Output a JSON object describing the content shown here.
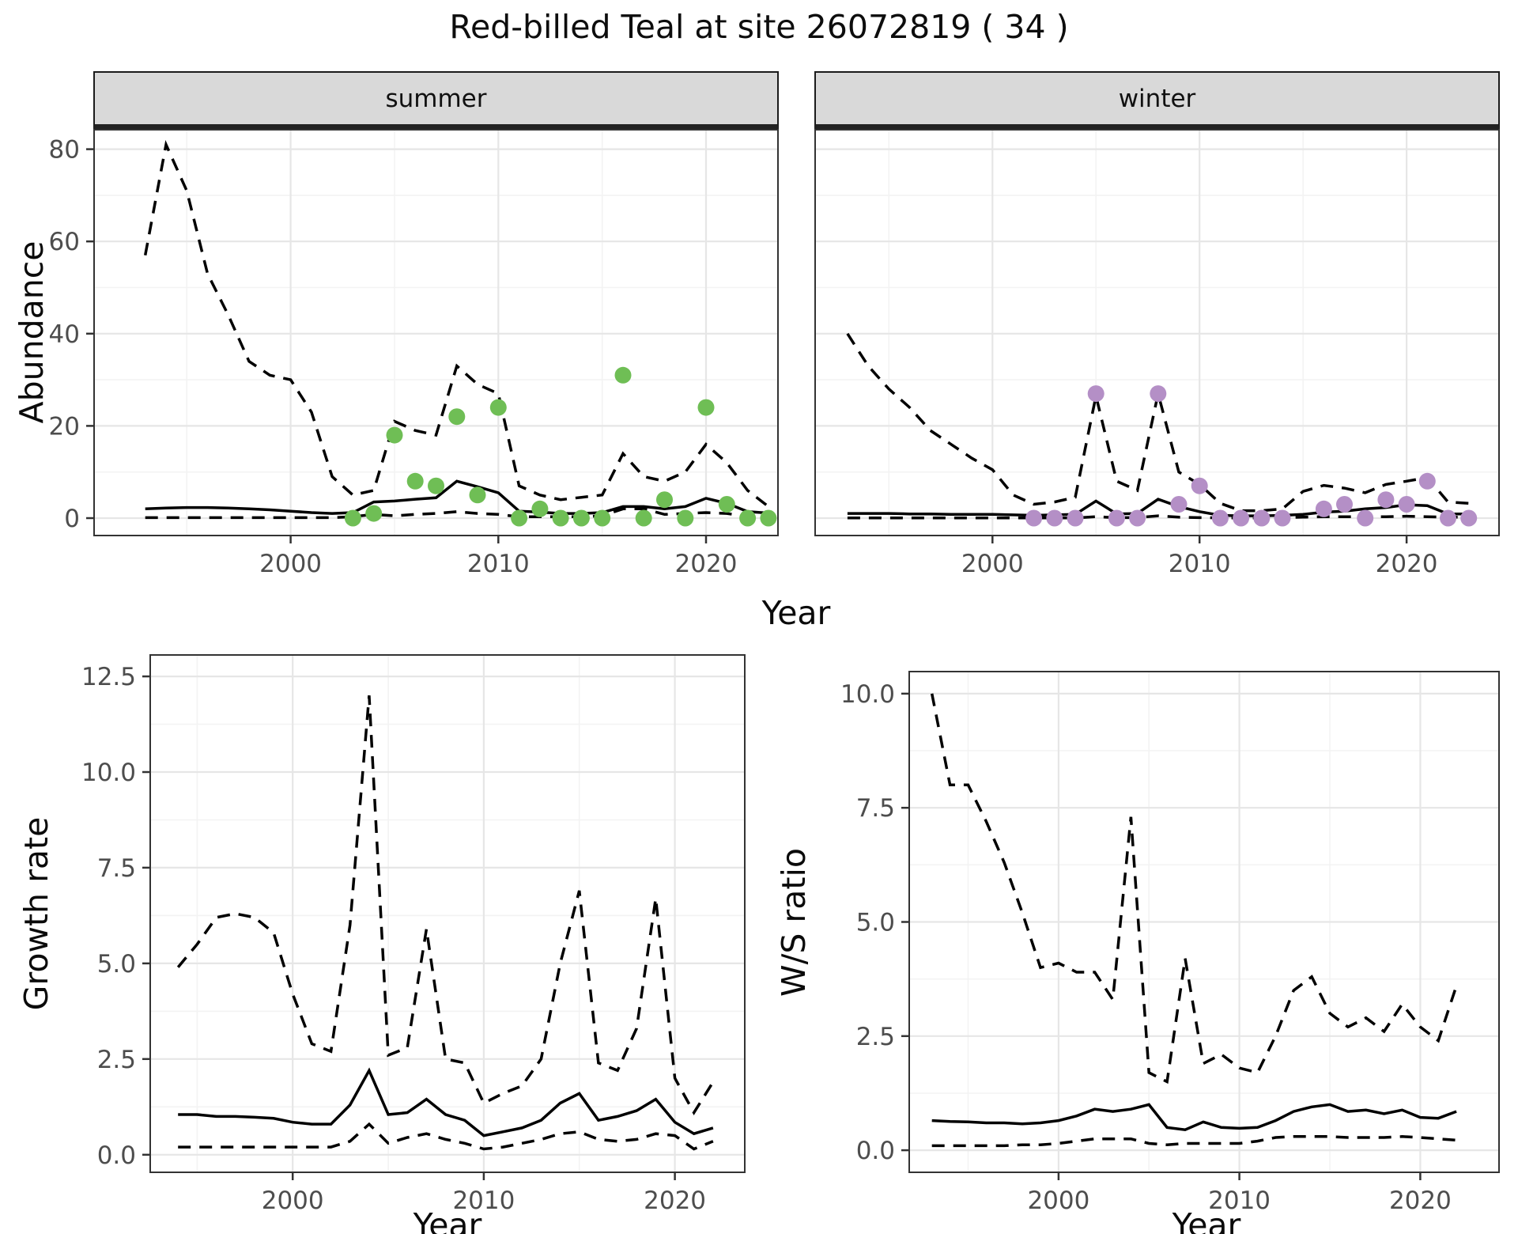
{
  "title": "Red-billed Teal at site 26072819 ( 34 )",
  "labels": {
    "abundance": "Abundance",
    "year": "Year",
    "growth_rate": "Growth rate",
    "ws_ratio": "W/S ratio"
  },
  "colors": {
    "summer_point": "#6fbe55",
    "winter_point": "#b48fc6",
    "line": "#000000",
    "grid_major": "#e6e6e6",
    "grid_minor": "#f3f3f3",
    "strip_bg": "#d9d9d9",
    "panel_border": "#333333",
    "tick_color": "#333333",
    "tick_text": "#4d4d4d"
  },
  "chart_data": [
    {
      "id": "abundance_summer",
      "type": "line",
      "strip": "summer",
      "xlabel": "Year",
      "ylabel": "Abundance",
      "xlim": [
        1990.5,
        2023.5
      ],
      "ylim": [
        -3.95,
        84.4
      ],
      "grid": true,
      "x_ticks": {
        "values": [
          2000,
          2010,
          2020
        ],
        "labels": [
          "2000",
          "2010",
          "2020"
        ],
        "minor": [
          1995,
          2005,
          2015
        ]
      },
      "y_ticks": {
        "values": [
          0,
          20,
          40,
          60,
          80
        ],
        "labels": [
          "0",
          "20",
          "40",
          "60",
          "80"
        ],
        "minor": [
          10,
          30,
          50,
          70
        ]
      },
      "years": [
        1993,
        1994,
        1995,
        1996,
        1997,
        1998,
        1999,
        2000,
        2001,
        2002,
        2003,
        2004,
        2005,
        2006,
        2007,
        2008,
        2009,
        2010,
        2011,
        2012,
        2013,
        2014,
        2015,
        2016,
        2017,
        2018,
        2019,
        2020,
        2021,
        2022,
        2023
      ],
      "series": [
        {
          "name": "upper_95ci",
          "style": "dashed",
          "values": [
            57,
            81,
            71,
            53,
            44,
            34,
            31,
            30,
            23,
            9,
            5,
            6,
            21,
            19,
            18,
            33,
            29,
            27,
            7,
            5,
            4,
            4.5,
            5,
            14,
            9,
            8,
            10,
            16,
            12,
            6,
            2.5
          ]
        },
        {
          "name": "median",
          "style": "solid",
          "values": [
            2,
            2.2,
            2.3,
            2.3,
            2.2,
            2,
            1.8,
            1.5,
            1.2,
            1,
            1.2,
            3.5,
            3.7,
            4.1,
            4.4,
            8,
            6.8,
            5.5,
            1.5,
            1.3,
            1,
            1,
            1.2,
            2.5,
            2.5,
            2,
            2.5,
            4.3,
            3.2,
            1.4,
            1.1
          ]
        },
        {
          "name": "lower_95ci",
          "style": "dashed",
          "values": [
            0.1,
            0.1,
            0.1,
            0.1,
            0.1,
            0.1,
            0.1,
            0.1,
            0.1,
            0.1,
            0.3,
            0.8,
            0.5,
            0.8,
            1,
            1.4,
            1,
            0.8,
            0.3,
            0.3,
            0.3,
            0.3,
            0.5,
            2,
            2,
            0.8,
            1,
            1.2,
            1,
            0.3,
            0.2
          ]
        }
      ],
      "points": {
        "name": "observed_counts",
        "color": "summer_point",
        "years": [
          2003,
          2004,
          2005,
          2006,
          2007,
          2008,
          2009,
          2010,
          2011,
          2012,
          2013,
          2014,
          2015,
          2016,
          2017,
          2018,
          2019,
          2020,
          2021,
          2022,
          2023
        ],
        "values": [
          0,
          1,
          18,
          8,
          7,
          22,
          5,
          24,
          0,
          2,
          0,
          0,
          0,
          31,
          0,
          4,
          0,
          24,
          3,
          0,
          0
        ]
      }
    },
    {
      "id": "abundance_winter",
      "type": "line",
      "strip": "winter",
      "xlabel": "Year",
      "ylabel": "Abundance",
      "xlim": [
        1991.4,
        2024.5
      ],
      "ylim": [
        -3.95,
        84.4
      ],
      "grid": true,
      "x_ticks": {
        "values": [
          2000,
          2010,
          2020
        ],
        "labels": [
          "2000",
          "2010",
          "2020"
        ],
        "minor": [
          1995,
          2005,
          2015
        ]
      },
      "y_ticks": {
        "values": [
          0,
          20,
          40,
          60,
          80
        ],
        "labels": [
          "0",
          "20",
          "40",
          "60",
          "80"
        ],
        "minor": [
          10,
          30,
          50,
          70
        ]
      },
      "years": [
        1993,
        1994,
        1995,
        1996,
        1997,
        1998,
        1999,
        2000,
        2001,
        2002,
        2003,
        2004,
        2005,
        2006,
        2007,
        2008,
        2009,
        2010,
        2011,
        2012,
        2013,
        2014,
        2015,
        2016,
        2017,
        2018,
        2019,
        2020,
        2021,
        2022,
        2023
      ],
      "series": [
        {
          "name": "upper_95ci",
          "style": "dashed",
          "values": [
            40,
            33,
            28,
            24,
            19,
            16,
            13,
            10.5,
            5,
            3,
            3.5,
            4.5,
            26.5,
            8,
            6,
            27,
            10,
            7.3,
            3.2,
            1.6,
            1.6,
            2,
            5.8,
            7.1,
            6.5,
            5.5,
            7.3,
            8,
            8.8,
            3.5,
            3.2
          ]
        },
        {
          "name": "median",
          "style": "solid",
          "values": [
            1,
            1,
            1,
            0.9,
            0.9,
            0.8,
            0.8,
            0.8,
            0.7,
            0.6,
            0.7,
            0.8,
            3.7,
            0.9,
            1,
            4.1,
            2.5,
            1.4,
            0.6,
            0.5,
            0.5,
            0.6,
            0.8,
            1.3,
            1.5,
            2,
            2.3,
            2.9,
            2.7,
            0.9,
            0.9
          ]
        },
        {
          "name": "lower_95ci",
          "style": "dashed",
          "values": [
            0.05,
            0.05,
            0.05,
            0.05,
            0.05,
            0.05,
            0.05,
            0.05,
            0.05,
            0.05,
            0.05,
            0.05,
            0.3,
            0.1,
            0.1,
            0.5,
            0.2,
            0.1,
            0.05,
            0.05,
            0.05,
            0.1,
            0.2,
            0.3,
            0.3,
            0.3,
            0.3,
            0.4,
            0.3,
            0.2,
            0.2
          ]
        }
      ],
      "points": {
        "name": "observed_counts",
        "color": "winter_point",
        "years": [
          2002,
          2003,
          2004,
          2005,
          2006,
          2007,
          2008,
          2009,
          2010,
          2011,
          2012,
          2013,
          2014,
          2016,
          2017,
          2018,
          2019,
          2020,
          2021,
          2022,
          2023
        ],
        "values": [
          0,
          0,
          0,
          27,
          0,
          0,
          27,
          3,
          7,
          0,
          0,
          0,
          0,
          2,
          3,
          0,
          4,
          3,
          8,
          0,
          0
        ]
      }
    },
    {
      "id": "growth_rate",
      "type": "line",
      "strip": null,
      "xlabel": "Year",
      "ylabel": "Growth rate",
      "xlim": [
        1992.5,
        2023.7
      ],
      "ylim": [
        -0.48,
        13.08
      ],
      "grid": true,
      "x_ticks": {
        "values": [
          2000,
          2010,
          2020
        ],
        "labels": [
          "2000",
          "2010",
          "2020"
        ],
        "minor": [
          1995,
          2005,
          2015
        ]
      },
      "y_ticks": {
        "values": [
          0,
          2.5,
          5,
          7.5,
          10,
          12.5
        ],
        "labels": [
          "0.0",
          "2.5",
          "5.0",
          "7.5",
          "10.0",
          "12.5"
        ],
        "minor": [
          1.25,
          3.75,
          6.25,
          8.75,
          11.25
        ]
      },
      "years": [
        1994,
        1995,
        1996,
        1997,
        1998,
        1999,
        2000,
        2001,
        2002,
        2003,
        2004,
        2005,
        2006,
        2007,
        2008,
        2009,
        2010,
        2011,
        2012,
        2013,
        2014,
        2015,
        2016,
        2017,
        2018,
        2019,
        2020,
        2021,
        2022
      ],
      "series": [
        {
          "name": "upper_95ci",
          "style": "dashed",
          "values": [
            4.9,
            5.5,
            6.2,
            6.3,
            6.2,
            5.8,
            4.2,
            2.9,
            2.7,
            6,
            12,
            2.6,
            2.8,
            5.9,
            2.5,
            2.4,
            1.35,
            1.6,
            1.8,
            2.5,
            5,
            6.9,
            2.4,
            2.2,
            3.3,
            6.7,
            2,
            1.1,
            1.9
          ]
        },
        {
          "name": "median",
          "style": "solid",
          "values": [
            1.05,
            1.05,
            1,
            1,
            0.98,
            0.95,
            0.85,
            0.8,
            0.8,
            1.3,
            2.2,
            1.05,
            1.1,
            1.45,
            1.05,
            0.9,
            0.5,
            0.6,
            0.7,
            0.9,
            1.35,
            1.6,
            0.9,
            1,
            1.15,
            1.45,
            0.85,
            0.55,
            0.7
          ]
        },
        {
          "name": "lower_95ci",
          "style": "dashed",
          "values": [
            0.2,
            0.2,
            0.2,
            0.2,
            0.2,
            0.2,
            0.2,
            0.2,
            0.2,
            0.35,
            0.8,
            0.3,
            0.45,
            0.55,
            0.4,
            0.3,
            0.15,
            0.2,
            0.3,
            0.4,
            0.55,
            0.6,
            0.4,
            0.35,
            0.4,
            0.55,
            0.5,
            0.15,
            0.35
          ]
        }
      ],
      "points": null
    },
    {
      "id": "ws_ratio",
      "type": "line",
      "strip": null,
      "xlabel": "Year",
      "ylabel": "W/S ratio",
      "xlim": [
        1991.7,
        2024.4
      ],
      "ylim": [
        -0.5,
        10.5
      ],
      "grid": true,
      "x_ticks": {
        "values": [
          2000,
          2010,
          2020
        ],
        "labels": [
          "2000",
          "2010",
          "2020"
        ],
        "minor": [
          1995,
          2005,
          2015
        ]
      },
      "y_ticks": {
        "values": [
          0,
          2.5,
          5,
          7.5,
          10
        ],
        "labels": [
          "0.0",
          "2.5",
          "5.0",
          "7.5",
          "10.0"
        ],
        "minor": [
          1.25,
          3.75,
          6.25,
          8.75
        ]
      },
      "years": [
        1993,
        1994,
        1995,
        1996,
        1997,
        1998,
        1999,
        2000,
        2001,
        2002,
        2003,
        2004,
        2005,
        2006,
        2007,
        2008,
        2009,
        2010,
        2011,
        2012,
        2013,
        2014,
        2015,
        2016,
        2017,
        2018,
        2019,
        2020,
        2021,
        2022
      ],
      "series": [
        {
          "name": "upper_95ci",
          "style": "dashed",
          "values": [
            10,
            8,
            8,
            7.2,
            6.3,
            5.2,
            4,
            4.1,
            3.9,
            3.9,
            3.3,
            7.3,
            1.7,
            1.5,
            4.2,
            1.9,
            2.1,
            1.8,
            1.7,
            2.5,
            3.5,
            3.8,
            3,
            2.7,
            2.9,
            2.6,
            3.2,
            2.7,
            2.4,
            3.6
          ]
        },
        {
          "name": "median",
          "style": "solid",
          "values": [
            0.65,
            0.63,
            0.62,
            0.6,
            0.6,
            0.58,
            0.6,
            0.65,
            0.75,
            0.9,
            0.85,
            0.9,
            1,
            0.5,
            0.45,
            0.62,
            0.5,
            0.48,
            0.5,
            0.65,
            0.85,
            0.95,
            1,
            0.85,
            0.88,
            0.8,
            0.88,
            0.72,
            0.7,
            0.85
          ]
        },
        {
          "name": "lower_95ci",
          "style": "dashed",
          "values": [
            0.1,
            0.1,
            0.1,
            0.1,
            0.1,
            0.12,
            0.12,
            0.15,
            0.2,
            0.25,
            0.25,
            0.25,
            0.15,
            0.12,
            0.15,
            0.15,
            0.15,
            0.15,
            0.2,
            0.28,
            0.3,
            0.3,
            0.3,
            0.28,
            0.28,
            0.28,
            0.3,
            0.28,
            0.25,
            0.22
          ]
        }
      ],
      "points": null
    }
  ]
}
